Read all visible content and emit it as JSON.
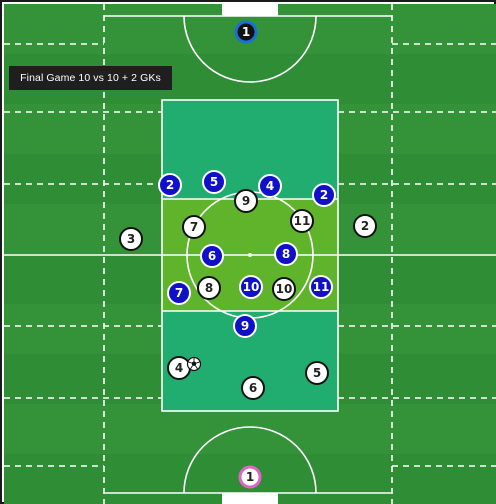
{
  "title": "Final Game 10 vs 10 + 2 GKs",
  "colors": {
    "pitch_dark": "#2f8e35",
    "pitch_light": "#3b9a3e",
    "zone_teal": "#22ad70",
    "zone_central": "#5fb42c",
    "blue_team": "#1010c8",
    "white_team": "#ffffff",
    "gk_top": "#1a6fd8",
    "gk_bottom": "#e064c8",
    "lines": "#ffffff"
  },
  "goalkeepers": [
    {
      "team": "blue",
      "number": "1"
    },
    {
      "team": "white",
      "number": "1"
    }
  ],
  "blue_players": [
    "2",
    "5",
    "4",
    "2",
    "6",
    "8",
    "7",
    "10",
    "11",
    "9"
  ],
  "white_players": [
    "3",
    "9",
    "7",
    "11",
    "2",
    "8",
    "10",
    "4",
    "6",
    "5"
  ],
  "ball": "soccer-ball-icon"
}
